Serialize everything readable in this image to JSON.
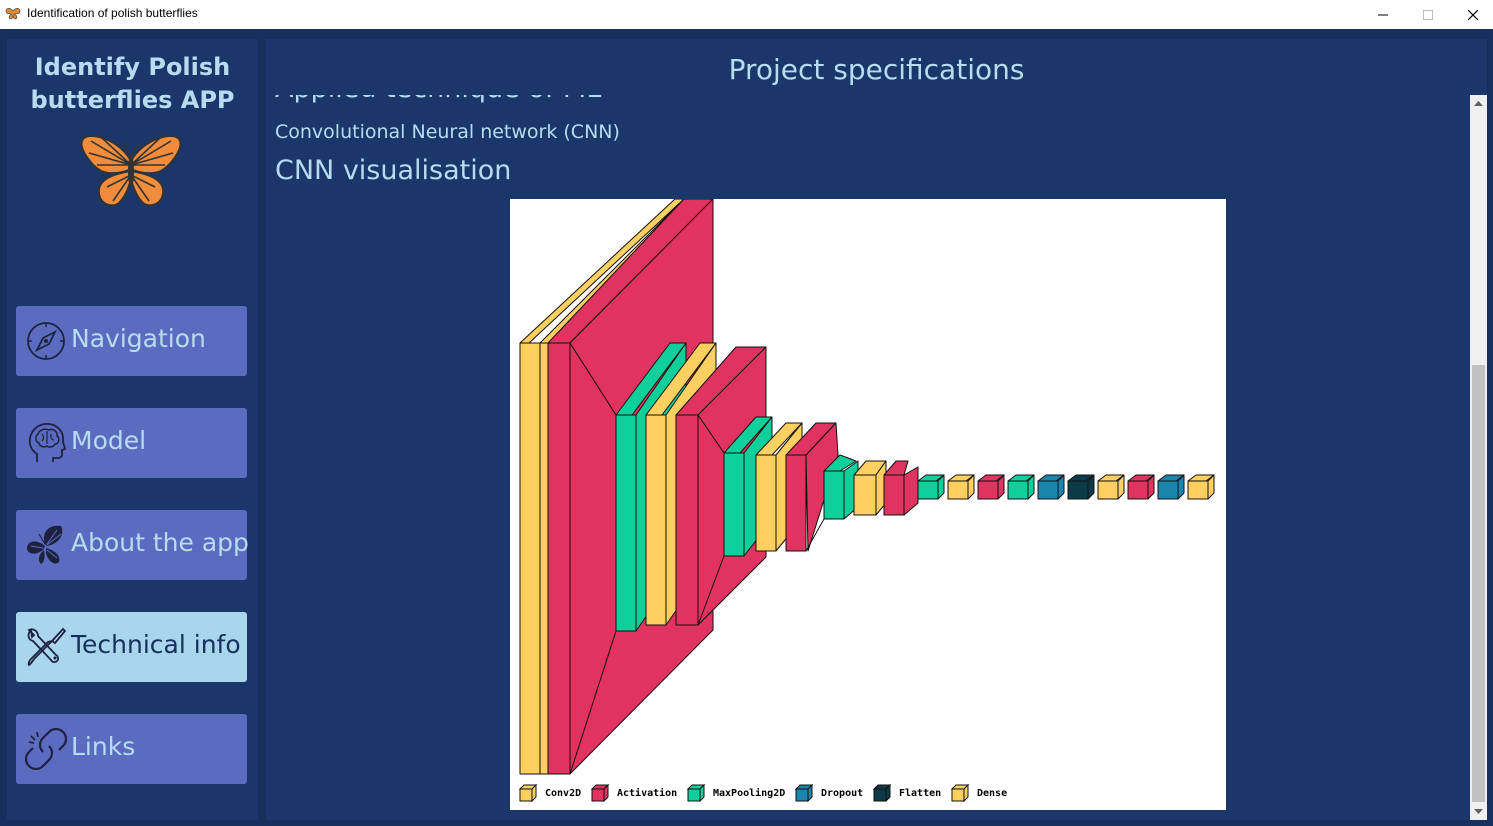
{
  "window": {
    "title": "Identification of polish butterflies",
    "controls": [
      "minimize",
      "maximize",
      "close"
    ]
  },
  "sidebar": {
    "app_title_line1": "Identify Polish",
    "app_title_line2": "butterflies APP",
    "logo_icon": "butterfly-icon",
    "items": [
      {
        "label": "Navigation",
        "icon": "compass-icon",
        "active": false
      },
      {
        "label": "Model",
        "icon": "head-brain-icon",
        "active": false
      },
      {
        "label": "About the app",
        "icon": "butterfly-icon",
        "active": false
      },
      {
        "label": "Technical info",
        "icon": "tools-icon",
        "active": true
      },
      {
        "label": "Links",
        "icon": "link-icon",
        "active": false
      }
    ]
  },
  "main": {
    "title": "Project specifications",
    "heading_partial": "Applied technique of ML",
    "technique": "Convolutional Neural network (CNN)",
    "visual_heading": "CNN visualisation",
    "legend": [
      {
        "label": "Conv2D",
        "color": "#fdd060"
      },
      {
        "label": "Activation",
        "color": "#e0335f"
      },
      {
        "label": "MaxPooling2D",
        "color": "#0fcf9a"
      },
      {
        "label": "Dropout",
        "color": "#1a86ac"
      },
      {
        "label": "Flatten",
        "color": "#0b3a48"
      },
      {
        "label": "Dense",
        "color": "#fdd060"
      }
    ]
  },
  "colors": {
    "background": "#16305e",
    "panel": "#1a366b",
    "button": "#5b6bbf",
    "button_active": "#a9d6ec",
    "text": "#b8dcef"
  }
}
